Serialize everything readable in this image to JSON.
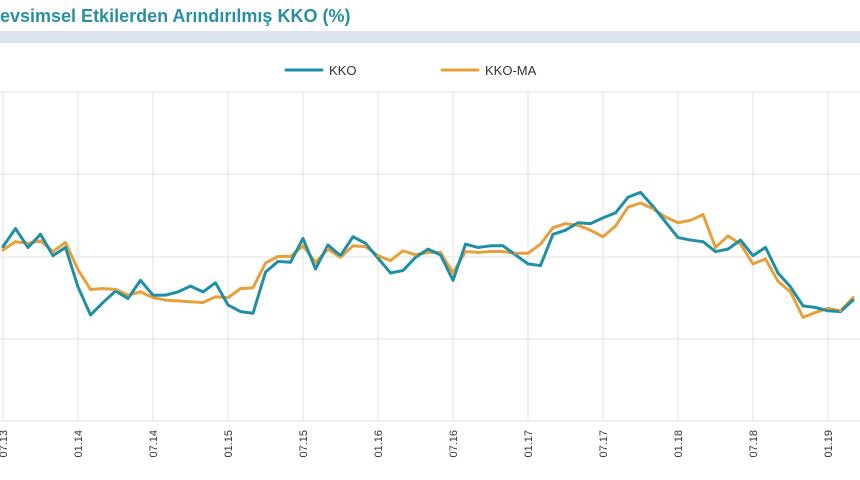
{
  "header": {
    "title": "evsimsel Etkilerden Arındırılmış KKO (%)"
  },
  "chart_data": {
    "type": "line",
    "title": "evsimsel Etkilerden Arındırılmış KKO (%)",
    "xlabel": "",
    "ylabel": "",
    "x_tick_labels": [
      "07.13",
      "01.14",
      "07.14",
      "01.15",
      "07.15",
      "01.16",
      "07.16",
      "01.17",
      "07.17",
      "01.18",
      "07.18",
      "01.19"
    ],
    "grid": true,
    "legend_position": "top-center",
    "series": [
      {
        "name": "KKO",
        "color": "#1f8fa6",
        "values": [
          {
            "x": "2013-07",
            "y": 0.6
          },
          {
            "x": "2013-08",
            "y": 1.7
          },
          {
            "x": "2013-09",
            "y": 0.55
          },
          {
            "x": "2013-10",
            "y": 1.35
          },
          {
            "x": "2013-11",
            "y": 0.05
          },
          {
            "x": "2013-12",
            "y": 0.55
          },
          {
            "x": "2014-01",
            "y": -1.85
          },
          {
            "x": "2014-02",
            "y": -3.55
          },
          {
            "x": "2014-03",
            "y": -2.8
          },
          {
            "x": "2014-04",
            "y": -2.1
          },
          {
            "x": "2014-05",
            "y": -2.55
          },
          {
            "x": "2014-06",
            "y": -1.45
          },
          {
            "x": "2014-07",
            "y": -2.35
          },
          {
            "x": "2014-08",
            "y": -2.35
          },
          {
            "x": "2014-09",
            "y": -2.15
          },
          {
            "x": "2014-10",
            "y": -1.8
          },
          {
            "x": "2014-11",
            "y": -2.15
          },
          {
            "x": "2014-12",
            "y": -1.6
          },
          {
            "x": "2015-01",
            "y": -2.95
          },
          {
            "x": "2015-02",
            "y": -3.35
          },
          {
            "x": "2015-03",
            "y": -3.45
          },
          {
            "x": "2015-04",
            "y": -0.95
          },
          {
            "x": "2015-05",
            "y": -0.3
          },
          {
            "x": "2015-06",
            "y": -0.35
          },
          {
            "x": "2015-07",
            "y": 1.1
          },
          {
            "x": "2015-08",
            "y": -0.75
          },
          {
            "x": "2015-09",
            "y": 0.7
          },
          {
            "x": "2015-10",
            "y": 0.05
          },
          {
            "x": "2015-11",
            "y": 1.2
          },
          {
            "x": "2015-12",
            "y": 0.8
          },
          {
            "x": "2016-01",
            "y": -0.1
          },
          {
            "x": "2016-02",
            "y": -1.0
          },
          {
            "x": "2016-03",
            "y": -0.85
          },
          {
            "x": "2016-04",
            "y": -0.05
          },
          {
            "x": "2016-05",
            "y": 0.45
          },
          {
            "x": "2016-06",
            "y": 0.1
          },
          {
            "x": "2016-07",
            "y": -1.45
          },
          {
            "x": "2016-08",
            "y": 0.75
          },
          {
            "x": "2016-09",
            "y": 0.55
          },
          {
            "x": "2016-10",
            "y": 0.65
          },
          {
            "x": "2016-11",
            "y": 0.65
          },
          {
            "x": "2016-12",
            "y": 0.1
          },
          {
            "x": "2017-01",
            "y": -0.45
          },
          {
            "x": "2017-02",
            "y": -0.55
          },
          {
            "x": "2017-03",
            "y": 1.35
          },
          {
            "x": "2017-04",
            "y": 1.6
          },
          {
            "x": "2017-05",
            "y": 2.05
          },
          {
            "x": "2017-06",
            "y": 2.0
          },
          {
            "x": "2017-07",
            "y": 2.35
          },
          {
            "x": "2017-08",
            "y": 2.65
          },
          {
            "x": "2017-09",
            "y": 3.6
          },
          {
            "x": "2017-10",
            "y": 3.9
          },
          {
            "x": "2017-11",
            "y": 3.05
          },
          {
            "x": "2017-12",
            "y": 2.1
          },
          {
            "x": "2018-01",
            "y": 1.15
          },
          {
            "x": "2018-02",
            "y": 1.0
          },
          {
            "x": "2018-03",
            "y": 0.9
          },
          {
            "x": "2018-04",
            "y": 0.3
          },
          {
            "x": "2018-05",
            "y": 0.45
          },
          {
            "x": "2018-06",
            "y": 1.0
          },
          {
            "x": "2018-07",
            "y": 0.05
          },
          {
            "x": "2018-08",
            "y": 0.55
          },
          {
            "x": "2018-09",
            "y": -1.0
          },
          {
            "x": "2018-10",
            "y": -1.85
          },
          {
            "x": "2018-11",
            "y": -3.0
          },
          {
            "x": "2018-12",
            "y": -3.1
          },
          {
            "x": "2019-01",
            "y": -3.3
          },
          {
            "x": "2019-02",
            "y": -3.35
          },
          {
            "x": "2019-03",
            "y": -2.65
          }
        ]
      },
      {
        "name": "KKO-MA",
        "color": "#e6a03c",
        "values": [
          {
            "x": "2013-07",
            "y": 0.4
          },
          {
            "x": "2013-08",
            "y": 0.9
          },
          {
            "x": "2013-09",
            "y": 0.8
          },
          {
            "x": "2013-10",
            "y": 0.95
          },
          {
            "x": "2013-11",
            "y": 0.3
          },
          {
            "x": "2013-12",
            "y": 0.85
          },
          {
            "x": "2014-01",
            "y": -0.8
          },
          {
            "x": "2014-02",
            "y": -2.0
          },
          {
            "x": "2014-03",
            "y": -1.95
          },
          {
            "x": "2014-04",
            "y": -2.0
          },
          {
            "x": "2014-05",
            "y": -2.35
          },
          {
            "x": "2014-06",
            "y": -2.15
          },
          {
            "x": "2014-07",
            "y": -2.5
          },
          {
            "x": "2014-08",
            "y": -2.65
          },
          {
            "x": "2014-09",
            "y": -2.7
          },
          {
            "x": "2014-10",
            "y": -2.75
          },
          {
            "x": "2014-11",
            "y": -2.8
          },
          {
            "x": "2014-12",
            "y": -2.45
          },
          {
            "x": "2015-01",
            "y": -2.5
          },
          {
            "x": "2015-02",
            "y": -1.95
          },
          {
            "x": "2015-03",
            "y": -1.9
          },
          {
            "x": "2015-04",
            "y": -0.4
          },
          {
            "x": "2015-05",
            "y": 0.0
          },
          {
            "x": "2015-06",
            "y": 0.0
          },
          {
            "x": "2015-07",
            "y": 0.65
          },
          {
            "x": "2015-08",
            "y": -0.35
          },
          {
            "x": "2015-09",
            "y": 0.45
          },
          {
            "x": "2015-10",
            "y": -0.05
          },
          {
            "x": "2015-11",
            "y": 0.65
          },
          {
            "x": "2015-12",
            "y": 0.6
          },
          {
            "x": "2016-01",
            "y": 0.05
          },
          {
            "x": "2016-02",
            "y": -0.25
          },
          {
            "x": "2016-03",
            "y": 0.35
          },
          {
            "x": "2016-04",
            "y": 0.1
          },
          {
            "x": "2016-05",
            "y": 0.25
          },
          {
            "x": "2016-06",
            "y": 0.25
          },
          {
            "x": "2016-07",
            "y": -1.0
          },
          {
            "x": "2016-08",
            "y": 0.3
          },
          {
            "x": "2016-09",
            "y": 0.25
          },
          {
            "x": "2016-10",
            "y": 0.3
          },
          {
            "x": "2016-11",
            "y": 0.3
          },
          {
            "x": "2016-12",
            "y": 0.2
          },
          {
            "x": "2017-01",
            "y": 0.2
          },
          {
            "x": "2017-02",
            "y": 0.75
          },
          {
            "x": "2017-03",
            "y": 1.75
          },
          {
            "x": "2017-04",
            "y": 2.0
          },
          {
            "x": "2017-05",
            "y": 1.9
          },
          {
            "x": "2017-06",
            "y": 1.6
          },
          {
            "x": "2017-07",
            "y": 1.2
          },
          {
            "x": "2017-08",
            "y": 1.85
          },
          {
            "x": "2017-09",
            "y": 3.0
          },
          {
            "x": "2017-10",
            "y": 3.25
          },
          {
            "x": "2017-11",
            "y": 2.9
          },
          {
            "x": "2017-12",
            "y": 2.4
          },
          {
            "x": "2018-01",
            "y": 2.05
          },
          {
            "x": "2018-02",
            "y": 2.2
          },
          {
            "x": "2018-03",
            "y": 2.55
          },
          {
            "x": "2018-04",
            "y": 0.55
          },
          {
            "x": "2018-05",
            "y": 1.25
          },
          {
            "x": "2018-06",
            "y": 0.75
          },
          {
            "x": "2018-07",
            "y": -0.45
          },
          {
            "x": "2018-08",
            "y": -0.15
          },
          {
            "x": "2018-09",
            "y": -1.5
          },
          {
            "x": "2018-10",
            "y": -2.15
          },
          {
            "x": "2018-11",
            "y": -3.7
          },
          {
            "x": "2018-12",
            "y": -3.4
          },
          {
            "x": "2019-01",
            "y": -3.15
          },
          {
            "x": "2019-02",
            "y": -3.3
          },
          {
            "x": "2019-03",
            "y": -2.5
          }
        ]
      }
    ]
  }
}
